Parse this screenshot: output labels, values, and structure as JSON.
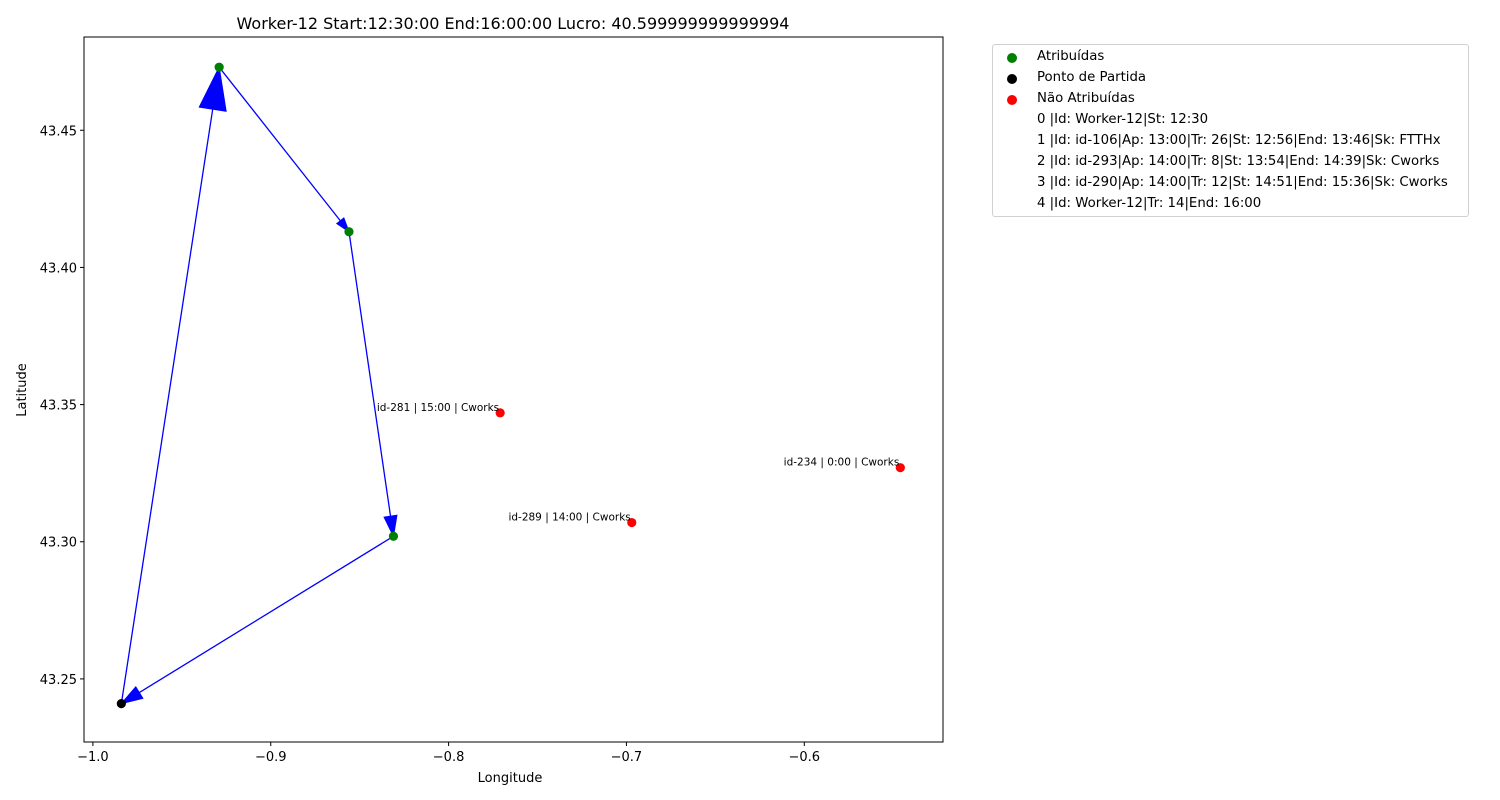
{
  "chart_data": {
    "type": "scatter",
    "title": "Worker-12 Start:12:30:00 End:16:00:00 Lucro: 40.599999999999994",
    "xlabel": "Longitude",
    "ylabel": "Latitude",
    "xlim": [
      -1.005,
      -0.522
    ],
    "ylim": [
      43.227,
      43.484
    ],
    "xticks": [
      -1.0,
      -0.9,
      -0.8,
      -0.7,
      -0.6
    ],
    "xtick_labels": [
      "−1.0",
      "−0.9",
      "−0.8",
      "−0.7",
      "−0.6"
    ],
    "yticks": [
      43.25,
      43.3,
      43.35,
      43.4,
      43.45
    ],
    "ytick_labels": [
      "43.25",
      "43.30",
      "43.35",
      "43.40",
      "43.45"
    ],
    "grid": false,
    "legend_position": "outside-top-right",
    "colors": {
      "assigned": "#008000",
      "start": "#000000",
      "unassigned": "#ff0000",
      "route": "#0000ff"
    },
    "series": [
      {
        "name": "Atribuídas",
        "color": "#008000",
        "points": [
          {
            "x": -0.929,
            "y": 43.473
          },
          {
            "x": -0.856,
            "y": 43.413
          },
          {
            "x": -0.831,
            "y": 43.302
          }
        ]
      },
      {
        "name": "Ponto de Partida",
        "color": "#000000",
        "points": [
          {
            "x": -0.984,
            "y": 43.241
          }
        ]
      },
      {
        "name": "Não Atribuídas",
        "color": "#ff0000",
        "points": [
          {
            "x": -0.771,
            "y": 43.347,
            "label": "id-281 | 15:00 | Cworks"
          },
          {
            "x": -0.546,
            "y": 43.327,
            "label": "id-234 | 0:00 | Cworks"
          },
          {
            "x": -0.697,
            "y": 43.307,
            "label": "id-289 | 14:00 | Cworks"
          }
        ]
      }
    ],
    "route": [
      {
        "x": -0.984,
        "y": 43.241
      },
      {
        "x": -0.929,
        "y": 43.473
      },
      {
        "x": -0.856,
        "y": 43.413
      },
      {
        "x": -0.831,
        "y": 43.302
      },
      {
        "x": -0.984,
        "y": 43.241
      }
    ],
    "legend_entries": [
      "Atribuídas",
      "Ponto de Partida",
      "Não Atribuídas",
      "0 |Id: Worker-12|St: 12:30",
      "1 |Id: id-106|Ap: 13:00|Tr: 26|St: 12:56|End: 13:46|Sk: FTTHx",
      "2 |Id: id-293|Ap: 14:00|Tr: 8|St: 13:54|End: 14:39|Sk: Cworks",
      "3 |Id: id-290|Ap: 14:00|Tr: 12|St: 14:51|End: 15:36|Sk: Cworks",
      "4 |Id: Worker-12|Tr: 14|End: 16:00"
    ]
  }
}
